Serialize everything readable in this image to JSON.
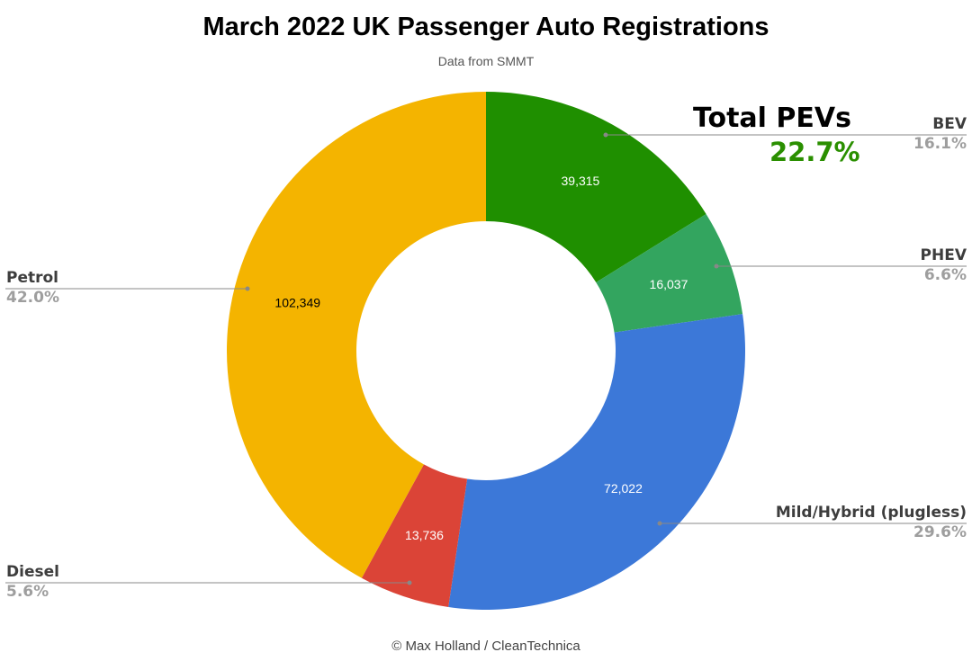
{
  "chart_data": {
    "type": "pie",
    "donut": true,
    "title": "March 2022 UK Passenger Auto Registrations",
    "subtitle": "Data from SMMT",
    "credit": "© Max Holland / CleanTechnica",
    "slices": [
      {
        "name": "BEV",
        "value": 39315,
        "value_label": "39,315",
        "percent": "16.1%",
        "color": "#1f8f00"
      },
      {
        "name": "PHEV",
        "value": 16037,
        "value_label": "16,037",
        "percent": "6.6%",
        "color": "#33a55f"
      },
      {
        "name": "Mild/Hybrid (plugless)",
        "value": 72022,
        "value_label": "72,022",
        "percent": "29.6%",
        "color": "#3c78d8"
      },
      {
        "name": "Diesel",
        "value": 13736,
        "value_label": "13,736",
        "percent": "5.6%",
        "color": "#db4437"
      },
      {
        "name": "Petrol",
        "value": 102349,
        "value_label": "102,349",
        "percent": "42.0%",
        "color": "#f4b400"
      }
    ],
    "annotation": {
      "title": "Total PEVs",
      "value": "22.7%"
    }
  }
}
